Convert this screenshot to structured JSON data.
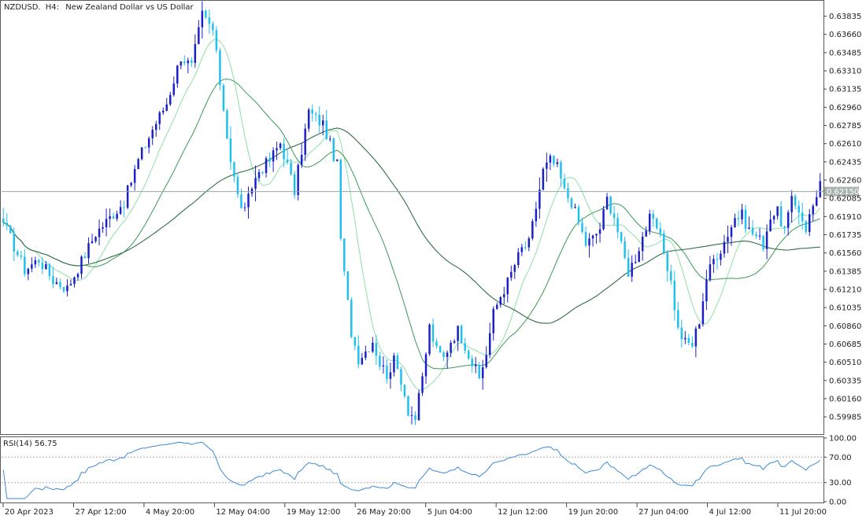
{
  "header": {
    "symbol": "NZDUSD.",
    "timeframe": "H4:",
    "description": "New Zealand Dollar vs US Dollar"
  },
  "colors": {
    "bull": "#1a20c8",
    "bear": "#1ec0f0",
    "ma_fast": "#8ee0a8",
    "ma_mid": "#3a9a55",
    "ma_slow": "#2f6f45",
    "rsi": "#3a8ad8",
    "price_line": "#9aa8a0",
    "price_tag_bg": "#a9b4b0"
  },
  "chart_data": [
    {
      "type": "candlestick",
      "name": "NZDUSD., H4",
      "current_price": 0.6215,
      "current_price_label": "0.62150",
      "y_ticks": [
        "0.63835",
        "0.63660",
        "0.63485",
        "0.63310",
        "0.63135",
        "0.62960",
        "0.62785",
        "0.62610",
        "0.62435",
        "0.62260",
        "0.62085",
        "0.61910",
        "0.61735",
        "0.61560",
        "0.61385",
        "0.61210",
        "0.61035",
        "0.60860",
        "0.60685",
        "0.60510",
        "0.60335",
        "0.60160",
        "0.59985"
      ],
      "ylim": [
        0.5985,
        0.6393
      ],
      "x_ticks": [
        "20 Apr 2023",
        "27 Apr 12:00",
        "4 May 20:00",
        "12 May 04:00",
        "19 May 12:00",
        "26 May 20:00",
        "5 Jun 04:00",
        "12 Jun 12:00",
        "19 Jun 20:00",
        "27 Jun 04:00",
        "4 Jul 12:00",
        "11 Jul 20:00"
      ],
      "close_anchors": [
        [
          0,
          0.6185
        ],
        [
          6,
          0.614
        ],
        [
          10,
          0.615
        ],
        [
          14,
          0.613
        ],
        [
          18,
          0.6122
        ],
        [
          22,
          0.6148
        ],
        [
          26,
          0.6175
        ],
        [
          30,
          0.619
        ],
        [
          34,
          0.6205
        ],
        [
          38,
          0.6245
        ],
        [
          42,
          0.6275
        ],
        [
          46,
          0.63
        ],
        [
          50,
          0.6345
        ],
        [
          53,
          0.6335
        ],
        [
          56,
          0.6385
        ],
        [
          59,
          0.637
        ],
        [
          62,
          0.6295
        ],
        [
          64,
          0.6245
        ],
        [
          66,
          0.621
        ],
        [
          68,
          0.6195
        ],
        [
          70,
          0.622
        ],
        [
          72,
          0.6235
        ],
        [
          75,
          0.6245
        ],
        [
          78,
          0.6262
        ],
        [
          80,
          0.624
        ],
        [
          82,
          0.6215
        ],
        [
          84,
          0.6255
        ],
        [
          86,
          0.6292
        ],
        [
          88,
          0.6285
        ],
        [
          90,
          0.628
        ],
        [
          92,
          0.626
        ],
        [
          94,
          0.624
        ],
        [
          95,
          0.617
        ],
        [
          96,
          0.6135
        ],
        [
          98,
          0.608
        ],
        [
          100,
          0.6055
        ],
        [
          102,
          0.6062
        ],
        [
          104,
          0.6072
        ],
        [
          106,
          0.605
        ],
        [
          108,
          0.604
        ],
        [
          110,
          0.6052
        ],
        [
          112,
          0.6035
        ],
        [
          114,
          0.6005
        ],
        [
          116,
          0.5997
        ],
        [
          118,
          0.6035
        ],
        [
          120,
          0.6085
        ],
        [
          122,
          0.6062
        ],
        [
          124,
          0.6055
        ],
        [
          126,
          0.6072
        ],
        [
          128,
          0.6082
        ],
        [
          130,
          0.6068
        ],
        [
          132,
          0.605
        ],
        [
          134,
          0.6035
        ],
        [
          136,
          0.606
        ],
        [
          138,
          0.6098
        ],
        [
          140,
          0.6115
        ],
        [
          142,
          0.6128
        ],
        [
          144,
          0.6145
        ],
        [
          146,
          0.616
        ],
        [
          148,
          0.6165
        ],
        [
          150,
          0.62
        ],
        [
          152,
          0.6235
        ],
        [
          154,
          0.6245
        ],
        [
          156,
          0.6238
        ],
        [
          158,
          0.6215
        ],
        [
          160,
          0.6205
        ],
        [
          162,
          0.6185
        ],
        [
          164,
          0.6165
        ],
        [
          166,
          0.617
        ],
        [
          168,
          0.618
        ],
        [
          170,
          0.6208
        ],
        [
          172,
          0.6192
        ],
        [
          174,
          0.6162
        ],
        [
          176,
          0.6138
        ],
        [
          178,
          0.6152
        ],
        [
          180,
          0.6172
        ],
        [
          182,
          0.6188
        ],
        [
          184,
          0.618
        ],
        [
          186,
          0.6158
        ],
        [
          188,
          0.6128
        ],
        [
          190,
          0.6082
        ],
        [
          192,
          0.607
        ],
        [
          194,
          0.6068
        ],
        [
          196,
          0.6092
        ],
        [
          198,
          0.6132
        ],
        [
          200,
          0.615
        ],
        [
          202,
          0.616
        ],
        [
          204,
          0.6175
        ],
        [
          206,
          0.619
        ],
        [
          208,
          0.6192
        ],
        [
          210,
          0.6178
        ],
        [
          212,
          0.6172
        ],
        [
          214,
          0.6165
        ],
        [
          216,
          0.6192
        ],
        [
          218,
          0.6195
        ],
        [
          220,
          0.6178
        ],
        [
          222,
          0.6205
        ],
        [
          224,
          0.6198
        ],
        [
          226,
          0.618
        ],
        [
          228,
          0.6202
        ],
        [
          230,
          0.6225
        ]
      ],
      "moving_averages": [
        "fast",
        "mid",
        "slow"
      ]
    },
    {
      "type": "line",
      "name": "RSI(14)",
      "label": "RSI(14) 56.75",
      "ylim": [
        0,
        100
      ],
      "y_ticks": [
        "100.00",
        "70.00",
        "30.00",
        "0.00"
      ],
      "levels": [
        70,
        30
      ]
    }
  ]
}
